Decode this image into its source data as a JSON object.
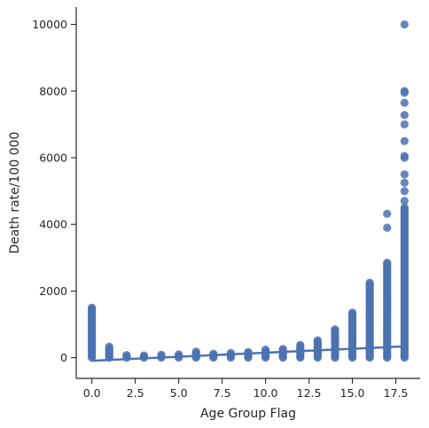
{
  "chart_data": {
    "type": "scatter",
    "xlabel": "Age Group Flag",
    "ylabel": "Death rate/100 000",
    "xlim": [
      -0.9,
      18.9
    ],
    "ylim": [
      -620,
      10520
    ],
    "xticks": [
      0.0,
      2.5,
      5.0,
      7.5,
      10.0,
      12.5,
      15.0,
      17.5
    ],
    "xtick_labels": [
      "0.0",
      "2.5",
      "5.0",
      "7.5",
      "10.0",
      "12.5",
      "15.0",
      "17.5"
    ],
    "yticks": [
      0,
      2000,
      4000,
      6000,
      8000,
      10000
    ],
    "ytick_labels": [
      "0",
      "2000",
      "4000",
      "6000",
      "8000",
      "10000"
    ],
    "color": "#4c72b0",
    "grid": false,
    "groups": [
      {
        "x": 0,
        "min": 0,
        "max": 1500
      },
      {
        "x": 1,
        "min": 0,
        "max": 330
      },
      {
        "x": 2,
        "min": 0,
        "max": 80
      },
      {
        "x": 3,
        "min": 0,
        "max": 70
      },
      {
        "x": 4,
        "min": 0,
        "max": 90
      },
      {
        "x": 5,
        "min": 0,
        "max": 100
      },
      {
        "x": 6,
        "min": 0,
        "max": 180
      },
      {
        "x": 7,
        "min": 0,
        "max": 120
      },
      {
        "x": 8,
        "min": 0,
        "max": 140
      },
      {
        "x": 9,
        "min": 0,
        "max": 170
      },
      {
        "x": 10,
        "min": 0,
        "max": 240
      },
      {
        "x": 11,
        "min": 0,
        "max": 260
      },
      {
        "x": 12,
        "min": 0,
        "max": 380
      },
      {
        "x": 13,
        "min": 0,
        "max": 520
      },
      {
        "x": 14,
        "min": 0,
        "max": 850
      },
      {
        "x": 15,
        "min": 0,
        "max": 1350
      },
      {
        "x": 16,
        "min": 0,
        "max": 2250
      },
      {
        "x": 17,
        "min": 0,
        "max": 2850
      },
      {
        "x": 18,
        "min": 0,
        "max": 4500
      }
    ],
    "outliers": [
      {
        "x": 17,
        "y": 4320
      },
      {
        "x": 17,
        "y": 3900
      },
      {
        "x": 18,
        "y": 10000
      },
      {
        "x": 18,
        "y": 8000
      },
      {
        "x": 18,
        "y": 7950
      },
      {
        "x": 18,
        "y": 7650
      },
      {
        "x": 18,
        "y": 7280
      },
      {
        "x": 18,
        "y": 7000
      },
      {
        "x": 18,
        "y": 6500
      },
      {
        "x": 18,
        "y": 6050
      },
      {
        "x": 18,
        "y": 6000
      },
      {
        "x": 18,
        "y": 5500
      },
      {
        "x": 18,
        "y": 5250
      },
      {
        "x": 18,
        "y": 5000
      },
      {
        "x": 18,
        "y": 4700
      }
    ],
    "regression": {
      "x": [
        0,
        18
      ],
      "y": [
        -90,
        340
      ]
    }
  }
}
